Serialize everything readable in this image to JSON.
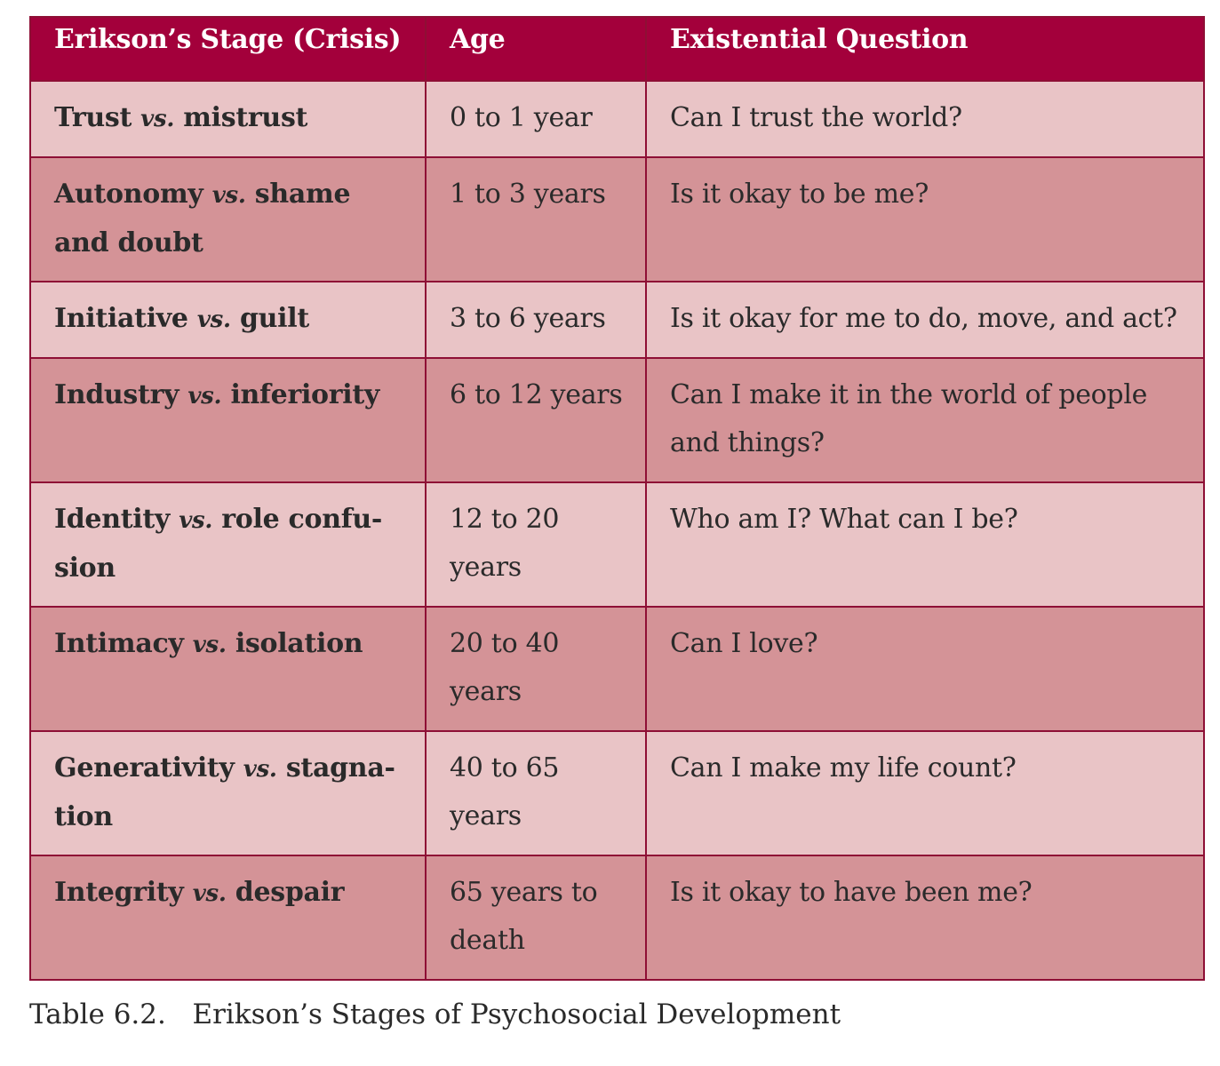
{
  "table": {
    "headers": [
      "Erikson’s Stage (Crisis)",
      "Age",
      "Existential Question"
    ],
    "rows": [
      {
        "stage_a": "Trust",
        "vs": "vs.",
        "stage_b": "mistrust",
        "age": "0 to 1 year",
        "question": "Can I trust the world?"
      },
      {
        "stage_a": "Autonomy",
        "vs": "vs.",
        "stage_b": "shame and doubt",
        "age": "1 to 3 years",
        "question": "Is it okay to be me?"
      },
      {
        "stage_a": "Initiative",
        "vs": "vs.",
        "stage_b": "guilt",
        "age": "3 to 6 years",
        "question": "Is it okay for me to do, move, and act?"
      },
      {
        "stage_a": "Industry",
        "vs": "vs.",
        "stage_b": "inferiority",
        "age": "6 to 12 years",
        "question": "Can I make it in the world of people and things?"
      },
      {
        "stage_a": "Identity",
        "vs": "vs.",
        "stage_b": "role confu-sion",
        "age": "12 to 20 years",
        "question": "Who am I? What can I be?"
      },
      {
        "stage_a": "Intimacy",
        "vs": "vs.",
        "stage_b": "isolation",
        "age": "20 to 40 years",
        "question": "Can I love?"
      },
      {
        "stage_a": "Generativity",
        "vs": "vs.",
        "stage_b": "stagna-tion",
        "age": "40 to 65 years",
        "question": "Can I make my life count?"
      },
      {
        "stage_a": "Integrity",
        "vs": "vs.",
        "stage_b": "despair",
        "age": "65 years to death",
        "question": "Is it okay to have been me?"
      }
    ]
  },
  "caption": {
    "label": "Table 6.2.",
    "title": "Erikson’s Stages of Psychosocial Development"
  },
  "colors": {
    "header_bg": "#a3003b",
    "row_light": "#e9c4c6",
    "row_dark": "#d49397",
    "border": "#8e0f35"
  }
}
